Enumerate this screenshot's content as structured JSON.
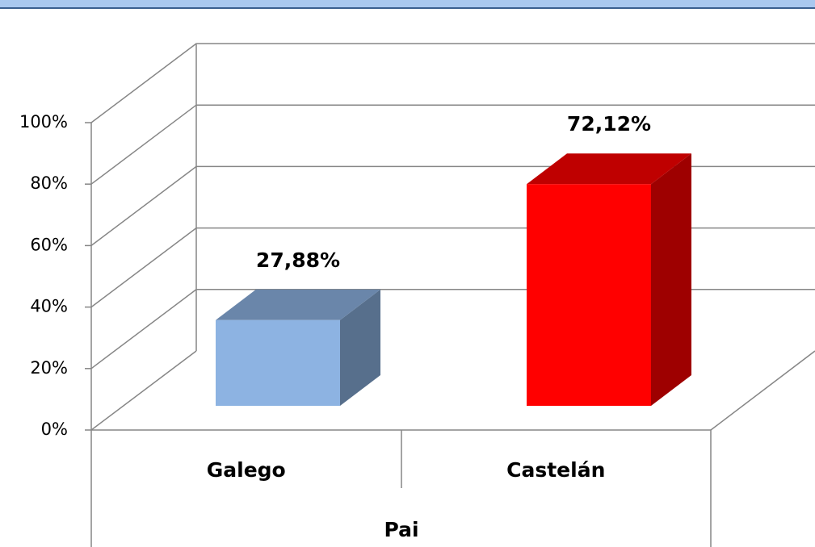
{
  "chart_data": {
    "type": "bar3d",
    "categories": [
      "Galego",
      "Castelán"
    ],
    "group_label": "Pai",
    "values": [
      27.88,
      72.12
    ],
    "value_labels": [
      "27,88%",
      "72,12%"
    ],
    "colors": [
      "#8db3e2",
      "#ff0000"
    ],
    "ylim": [
      0,
      100
    ],
    "yticks": [
      {
        "value": 0,
        "label": "0%"
      },
      {
        "value": 20,
        "label": "20%"
      },
      {
        "value": 40,
        "label": "40%"
      },
      {
        "value": 60,
        "label": "60%"
      },
      {
        "value": 80,
        "label": "80%"
      },
      {
        "value": 100,
        "label": "100%"
      }
    ],
    "grid": true
  }
}
